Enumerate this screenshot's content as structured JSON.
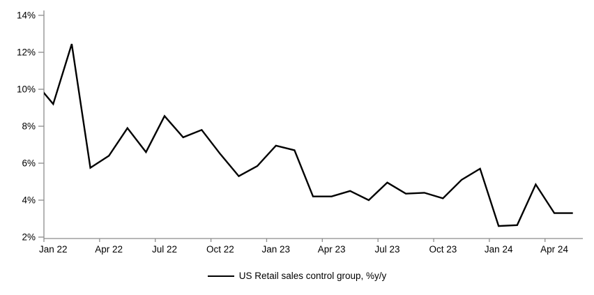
{
  "chart_data": {
    "type": "line",
    "title": "",
    "xlabel": "",
    "ylabel": "",
    "x": [
      "Jan 22",
      "Feb 22",
      "Mar 22",
      "Apr 22",
      "May 22",
      "Jun 22",
      "Jul 22",
      "Aug 22",
      "Sep 22",
      "Oct 22",
      "Nov 22",
      "Dec 22",
      "Jan 23",
      "Feb 23",
      "Mar 23",
      "Apr 23",
      "May 23",
      "Jun 23",
      "Jul 23",
      "Aug 23",
      "Sep 23",
      "Oct 23",
      "Nov 23",
      "Dec 23",
      "Jan 24",
      "Feb 24",
      "Mar 24",
      "Apr 24",
      "May 24"
    ],
    "series": [
      {
        "name": "US Retail sales control group, %y/y",
        "color": "#000000",
        "values": [
          9.2,
          12.45,
          5.75,
          6.4,
          7.9,
          6.6,
          8.55,
          7.4,
          7.8,
          6.5,
          5.3,
          5.85,
          6.95,
          6.7,
          4.2,
          4.2,
          4.5,
          4.0,
          4.95,
          4.35,
          4.4,
          4.1,
          5.1,
          5.7,
          2.6,
          2.65,
          4.85,
          3.3,
          3.3
        ]
      }
    ],
    "lead_in_point": {
      "x": "Dec 21",
      "value": 10.4
    },
    "xticks": [
      "Jan 22",
      "Apr 22",
      "Jul 22",
      "Oct 22",
      "Jan 23",
      "Apr 23",
      "Jul 23",
      "Oct 23",
      "Jan 24",
      "Apr 24"
    ],
    "yticks": [
      "2%",
      "4%",
      "6%",
      "8%",
      "10%",
      "12%",
      "14%"
    ],
    "ylim": [
      2,
      14
    ],
    "grid": false,
    "legend_position": "bottom",
    "axis_color": "#8c8c8c",
    "label_color": "#000000",
    "background": "#ffffff"
  }
}
